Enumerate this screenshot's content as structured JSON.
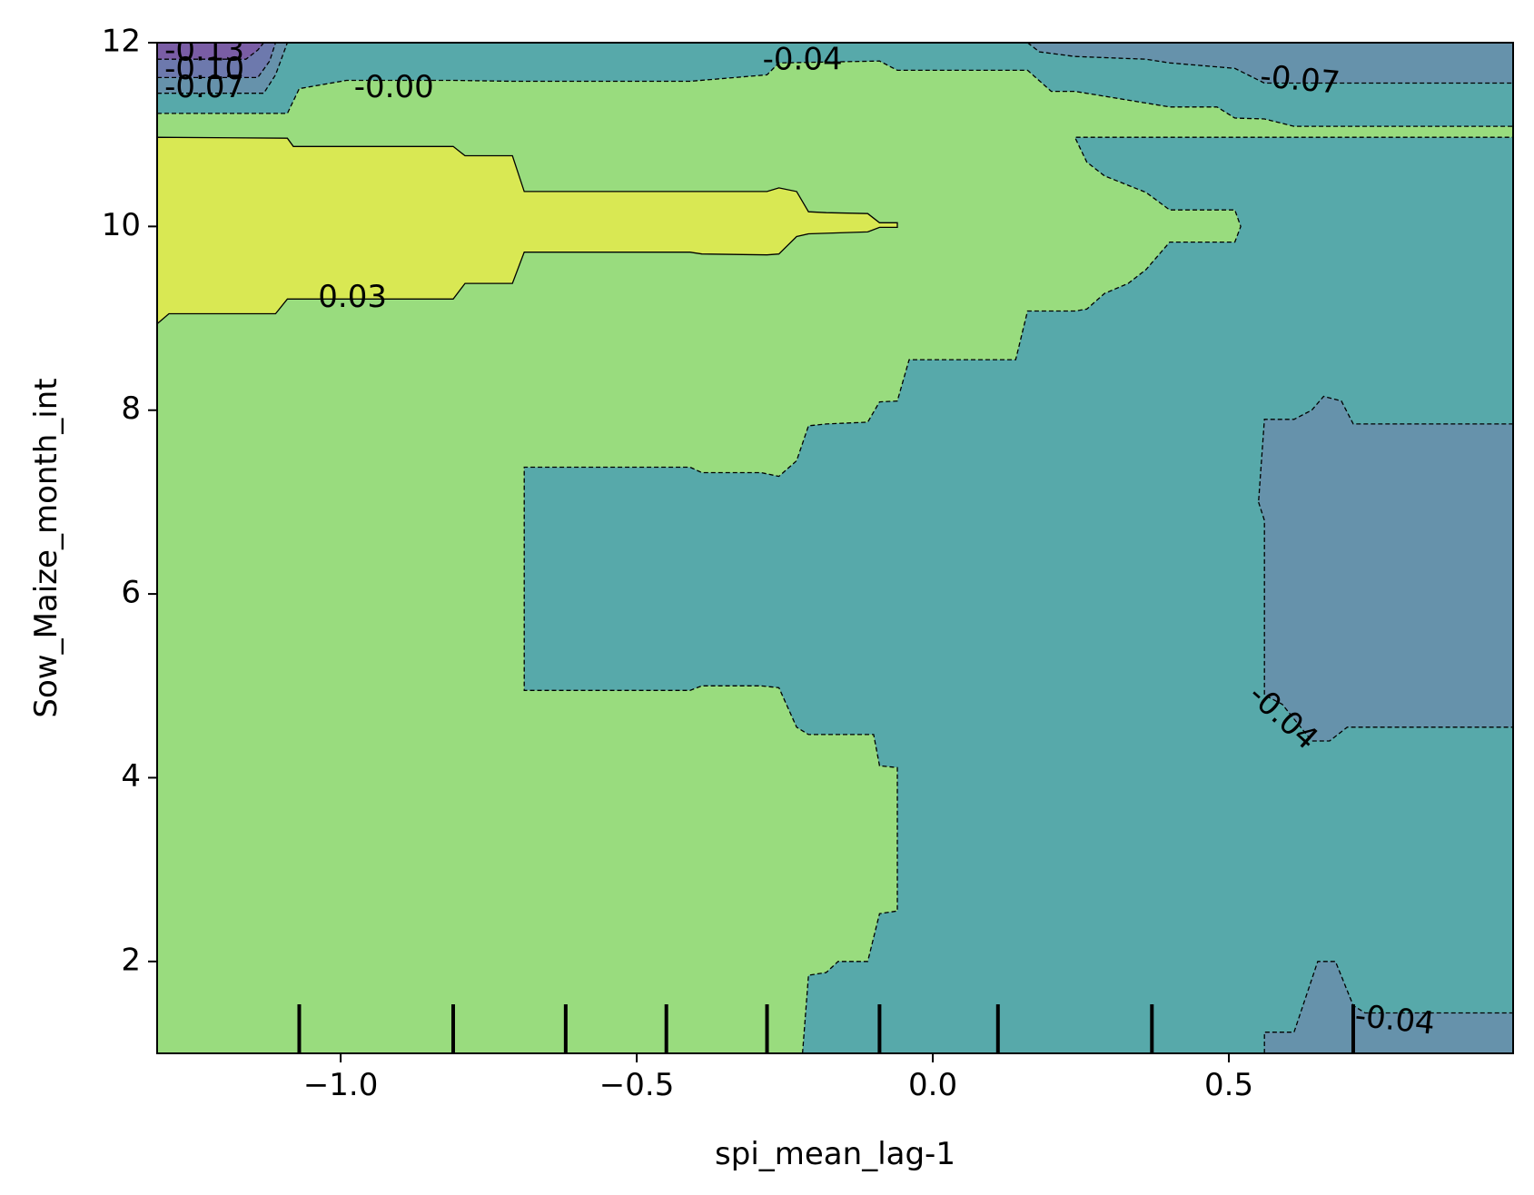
{
  "chart_data": {
    "type": "contourf",
    "title": "",
    "xlabel": "spi_mean_lag-1",
    "ylabel": "Sow_Maize_month_int",
    "xlim": [
      -1.31,
      0.98
    ],
    "ylim": [
      1,
      12
    ],
    "x_ticks": [
      -1.0,
      -0.5,
      0.0,
      0.5
    ],
    "x_tick_labels": [
      "−1.0",
      "−0.5",
      "0.0",
      "0.5"
    ],
    "y_ticks": [
      2,
      4,
      6,
      8,
      10,
      12
    ],
    "y_tick_labels": [
      "2",
      "4",
      "6",
      "8",
      "10",
      "12"
    ],
    "grid": false,
    "legend": "none",
    "colormap": "viridis",
    "levels": [
      -0.13,
      -0.1,
      -0.07,
      -0.04,
      -0.0,
      0.03
    ],
    "band_colors": {
      "above_0.03": "#d9e853",
      "-0.00_to_0.03": "#99dc7e",
      "-0.04_to_-0.00": "#63c59b",
      "-0.07_to_-0.04": "#57a9aa",
      "-0.10_to_-0.07": "#6692ab",
      "-0.13_to_-0.10": "#6d79ad",
      "below_-0.13": "#7a5da5"
    },
    "regions": [
      {
        "level": 0.03,
        "points": [
          [
            -1.31,
            10.97
          ],
          [
            -1.09,
            10.96
          ],
          [
            -1.08,
            10.87
          ],
          [
            -0.81,
            10.87
          ],
          [
            -0.79,
            10.77
          ],
          [
            -0.71,
            10.77
          ],
          [
            -0.69,
            10.38
          ],
          [
            -0.28,
            10.38
          ],
          [
            -0.26,
            10.42
          ],
          [
            -0.23,
            10.38
          ],
          [
            -0.21,
            10.16
          ],
          [
            -0.18,
            10.15
          ],
          [
            -0.11,
            10.14
          ],
          [
            -0.09,
            10.04
          ],
          [
            -0.06,
            10.04
          ],
          [
            -0.06,
            9.99
          ],
          [
            -0.09,
            9.99
          ],
          [
            -0.11,
            9.94
          ],
          [
            -0.21,
            9.92
          ],
          [
            -0.23,
            9.89
          ],
          [
            -0.26,
            9.7
          ],
          [
            -0.28,
            9.69
          ],
          [
            -0.39,
            9.7
          ],
          [
            -0.41,
            9.72
          ],
          [
            -0.69,
            9.72
          ],
          [
            -0.71,
            9.38
          ],
          [
            -0.79,
            9.38
          ],
          [
            -0.81,
            9.21
          ],
          [
            -1.09,
            9.21
          ],
          [
            -1.11,
            9.05
          ],
          [
            -1.29,
            9.05
          ],
          [
            -1.31,
            8.94
          ]
        ]
      },
      {
        "level": -0.04,
        "points": [
          [
            -0.22,
            1.0
          ],
          [
            -0.21,
            1.85
          ],
          [
            -0.18,
            1.88
          ],
          [
            -0.16,
            2.0
          ],
          [
            -0.11,
            2.0
          ],
          [
            -0.09,
            2.52
          ],
          [
            -0.06,
            2.55
          ],
          [
            -0.06,
            4.11
          ],
          [
            -0.09,
            4.13
          ],
          [
            -0.1,
            4.47
          ],
          [
            -0.21,
            4.47
          ],
          [
            -0.23,
            4.55
          ],
          [
            -0.26,
            4.98
          ],
          [
            -0.29,
            5.0
          ],
          [
            -0.39,
            5.0
          ],
          [
            -0.41,
            4.95
          ],
          [
            -0.69,
            4.95
          ],
          [
            -0.69,
            7.38
          ],
          [
            -0.41,
            7.38
          ],
          [
            -0.39,
            7.32
          ],
          [
            -0.29,
            7.32
          ],
          [
            -0.26,
            7.28
          ],
          [
            -0.23,
            7.45
          ],
          [
            -0.21,
            7.83
          ],
          [
            -0.18,
            7.85
          ],
          [
            -0.11,
            7.87
          ],
          [
            -0.09,
            8.09
          ],
          [
            -0.06,
            8.1
          ],
          [
            -0.04,
            8.55
          ],
          [
            0.14,
            8.55
          ],
          [
            0.16,
            9.08
          ],
          [
            0.24,
            9.08
          ],
          [
            0.26,
            9.1
          ],
          [
            0.29,
            9.27
          ],
          [
            0.33,
            9.38
          ],
          [
            0.36,
            9.53
          ],
          [
            0.4,
            9.83
          ],
          [
            0.51,
            9.83
          ],
          [
            0.52,
            10.0
          ],
          [
            0.51,
            10.18
          ],
          [
            0.4,
            10.18
          ],
          [
            0.36,
            10.37
          ],
          [
            0.29,
            10.55
          ],
          [
            0.26,
            10.7
          ],
          [
            0.24,
            10.97
          ],
          [
            0.98,
            10.97
          ],
          [
            0.98,
            1.0
          ]
        ]
      },
      {
        "level": -0.04,
        "points": [
          [
            -1.31,
            11.23
          ],
          [
            -1.09,
            11.23
          ],
          [
            -1.07,
            11.5
          ],
          [
            -0.99,
            11.59
          ],
          [
            -0.81,
            11.59
          ],
          [
            -0.71,
            11.58
          ],
          [
            -0.41,
            11.58
          ],
          [
            -0.28,
            11.65
          ],
          [
            -0.26,
            11.78
          ],
          [
            -0.09,
            11.8
          ],
          [
            -0.06,
            11.7
          ],
          [
            0.16,
            11.7
          ],
          [
            0.2,
            11.47
          ],
          [
            0.24,
            11.47
          ],
          [
            0.4,
            11.3
          ],
          [
            0.48,
            11.3
          ],
          [
            0.51,
            11.18
          ],
          [
            0.56,
            11.17
          ],
          [
            0.61,
            11.09
          ],
          [
            0.98,
            11.09
          ],
          [
            0.98,
            12.0
          ],
          [
            -1.31,
            12.0
          ]
        ]
      },
      {
        "level": -0.07,
        "points": [
          [
            0.16,
            12.0
          ],
          [
            0.18,
            11.9
          ],
          [
            0.24,
            11.85
          ],
          [
            0.36,
            11.82
          ],
          [
            0.4,
            11.78
          ],
          [
            0.51,
            11.72
          ],
          [
            0.56,
            11.56
          ],
          [
            0.98,
            11.56
          ],
          [
            0.98,
            12.0
          ]
        ]
      },
      {
        "level": -0.07,
        "points": [
          [
            0.56,
            1.0
          ],
          [
            0.56,
            1.23
          ],
          [
            0.61,
            1.23
          ],
          [
            0.65,
            2.0
          ],
          [
            0.68,
            2.0
          ],
          [
            0.71,
            1.52
          ],
          [
            0.73,
            1.44
          ],
          [
            0.76,
            1.44
          ],
          [
            0.98,
            1.44
          ],
          [
            0.98,
            1.0
          ]
        ]
      },
      {
        "level": -0.07,
        "points": [
          [
            0.55,
            7.0
          ],
          [
            0.56,
            6.8
          ],
          [
            0.56,
            5.5
          ],
          [
            0.56,
            4.9
          ],
          [
            0.59,
            4.8
          ],
          [
            0.64,
            4.4
          ],
          [
            0.67,
            4.4
          ],
          [
            0.7,
            4.55
          ],
          [
            0.98,
            4.55
          ],
          [
            0.98,
            7.85
          ],
          [
            0.71,
            7.85
          ],
          [
            0.69,
            8.1
          ],
          [
            0.66,
            8.15
          ],
          [
            0.64,
            8.0
          ],
          [
            0.61,
            7.9
          ],
          [
            0.56,
            7.9
          ]
        ]
      },
      {
        "level": -0.07,
        "points": [
          [
            -1.31,
            11.45
          ],
          [
            -1.13,
            11.45
          ],
          [
            -1.11,
            11.65
          ],
          [
            -1.09,
            12.0
          ],
          [
            -1.31,
            12.0
          ]
        ]
      },
      {
        "level": -0.1,
        "points": [
          [
            -1.31,
            11.62
          ],
          [
            -1.14,
            11.62
          ],
          [
            -1.12,
            11.8
          ],
          [
            -1.11,
            12.0
          ],
          [
            -1.31,
            12.0
          ]
        ]
      },
      {
        "level": -0.13,
        "points": [
          [
            -1.31,
            11.82
          ],
          [
            -1.16,
            11.82
          ],
          [
            -1.14,
            11.92
          ],
          [
            -1.13,
            12.0
          ],
          [
            -1.31,
            12.0
          ]
        ]
      }
    ],
    "contour_labels": [
      {
        "text": "0.03",
        "x": -0.98,
        "y": 9.22,
        "rotation": 0
      },
      {
        "text": "-0.00",
        "x": -0.91,
        "y": 11.5,
        "rotation": 0
      },
      {
        "text": "-0.04",
        "x": -0.22,
        "y": 11.8,
        "rotation": 0
      },
      {
        "text": "-0.07",
        "x": 0.62,
        "y": 11.58,
        "rotation": 5
      },
      {
        "text": "-0.04",
        "x": 0.59,
        "y": 4.65,
        "rotation": 42
      },
      {
        "text": "-0.04",
        "x": 0.78,
        "y": 1.35,
        "rotation": 6
      },
      {
        "text": "-0.13",
        "x": -1.23,
        "y": 11.9,
        "rotation": 0
      },
      {
        "text": "-0.10",
        "x": -1.23,
        "y": 11.7,
        "rotation": 0
      },
      {
        "text": "-0.07",
        "x": -1.23,
        "y": 11.5,
        "rotation": 0
      }
    ],
    "rug_x": [
      -1.07,
      -0.81,
      -0.62,
      -0.45,
      -0.28,
      -0.09,
      0.11,
      0.37,
      0.71
    ]
  }
}
